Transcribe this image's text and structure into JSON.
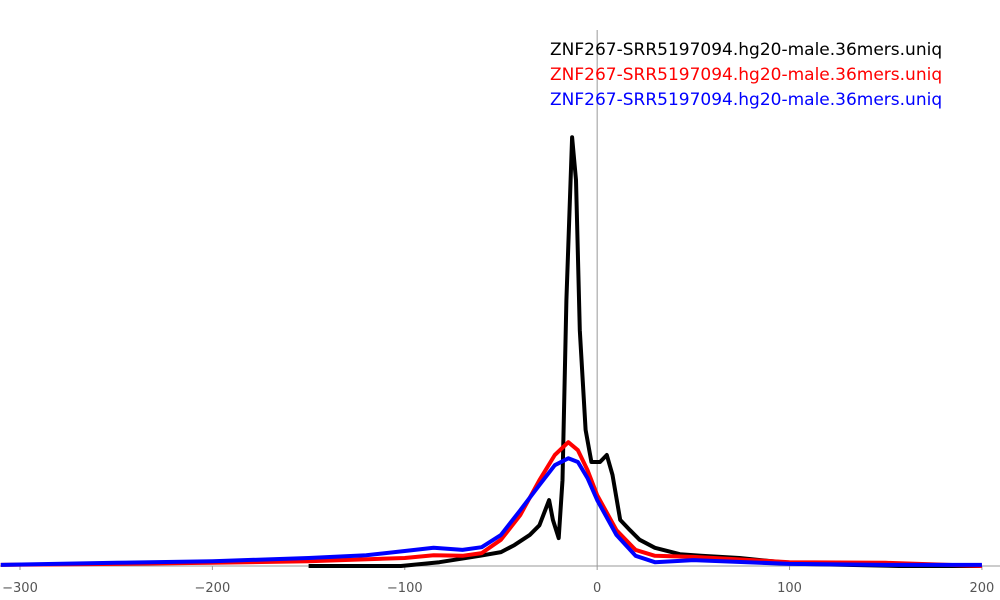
{
  "chart_data": {
    "type": "line",
    "xlim": [
      -310.4,
      209.4
    ],
    "ylim": [
      0,
      100
    ],
    "xticks": [
      {
        "value": -300,
        "label": "−300"
      },
      {
        "value": -200,
        "label": "−200"
      },
      {
        "value": -100,
        "label": "−100"
      },
      0,
      100,
      200
    ],
    "series": [
      {
        "name": "ZNF267-SRR5197094.hg20-male.36mers.uniq",
        "color": "#000000",
        "x": [
          -150,
          -102,
          -82,
          -61,
          -50,
          -43,
          -35,
          -30,
          -25,
          -23,
          -20,
          -18,
          -16,
          -13,
          -11,
          -9,
          -6,
          -3,
          1.5,
          5,
          8,
          12,
          17,
          22,
          30,
          43,
          54,
          74,
          105,
          157,
          199
        ],
        "values": [
          0,
          0,
          0.7,
          1.9,
          2.6,
          3.9,
          5.8,
          7.6,
          12.3,
          8.6,
          5.2,
          16,
          49.6,
          80,
          72,
          44,
          25.4,
          19.4,
          19.4,
          20.7,
          17,
          8.6,
          6.7,
          4.9,
          3.4,
          2.2,
          1.9,
          1.5,
          0.4,
          0,
          0
        ]
      },
      {
        "name": "ZNF267-SRR5197094.hg20-male.36mers.uniq",
        "color": "#ff0000",
        "x": [
          -310,
          -250,
          -200,
          -150,
          -100,
          -85,
          -70,
          -60,
          -50,
          -40,
          -30,
          -22,
          -15,
          -10,
          -5,
          0,
          10,
          20,
          30,
          50,
          100,
          150,
          200
        ],
        "values": [
          0.2,
          0.4,
          0.6,
          0.9,
          1.5,
          2,
          1.9,
          2.4,
          4.9,
          9.5,
          16,
          20.7,
          23.1,
          21.6,
          17.9,
          13.2,
          6.7,
          3,
          1.9,
          1.7,
          0.7,
          0.6,
          0
        ]
      },
      {
        "name": "ZNF267-SRR5197094.hg20-male.36mers.uniq",
        "color": "#0000ff",
        "x": [
          -310,
          -250,
          -200,
          -150,
          -120,
          -100,
          -85,
          -70,
          -60,
          -50,
          -40,
          -30,
          -22,
          -15,
          -10,
          -5,
          0,
          10,
          20,
          30,
          50,
          100,
          150,
          200
        ],
        "values": [
          0.2,
          0.6,
          0.9,
          1.5,
          2,
          2.8,
          3.4,
          3,
          3.5,
          5.8,
          10.4,
          15.1,
          18.8,
          20.1,
          19.4,
          16.4,
          12.3,
          5.8,
          1.9,
          0.7,
          1.1,
          0.4,
          0.2,
          0.2
        ]
      }
    ]
  }
}
